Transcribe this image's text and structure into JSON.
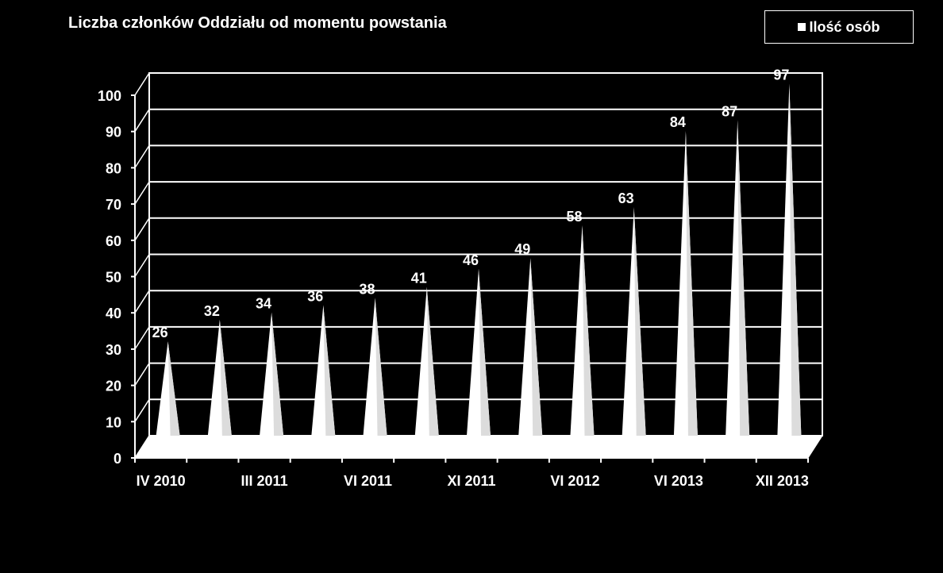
{
  "colors": {
    "background": "#000000",
    "foreground": "#ffffff"
  },
  "chart_data": {
    "type": "bar",
    "bar_shape": "cone-3d",
    "title": "Liczba członków Oddziału od momentu powstania",
    "legend": {
      "position": "top-right",
      "entries": [
        "Ilość osób"
      ]
    },
    "xlabel": "",
    "ylabel": "",
    "ylim": [
      0,
      100
    ],
    "yticks": [
      0,
      10,
      20,
      30,
      40,
      50,
      60,
      70,
      80,
      90,
      100
    ],
    "grid": true,
    "categories": [
      "IV 2010",
      "",
      "III 2011",
      "",
      "VI 2011",
      "",
      "XI 2011",
      "",
      "VI 2012",
      "",
      "VI 2013",
      "",
      "XII 2013"
    ],
    "series": [
      {
        "name": "Ilość osób",
        "values": [
          26,
          32,
          34,
          36,
          38,
          41,
          46,
          49,
          58,
          63,
          84,
          87,
          97
        ]
      }
    ]
  }
}
